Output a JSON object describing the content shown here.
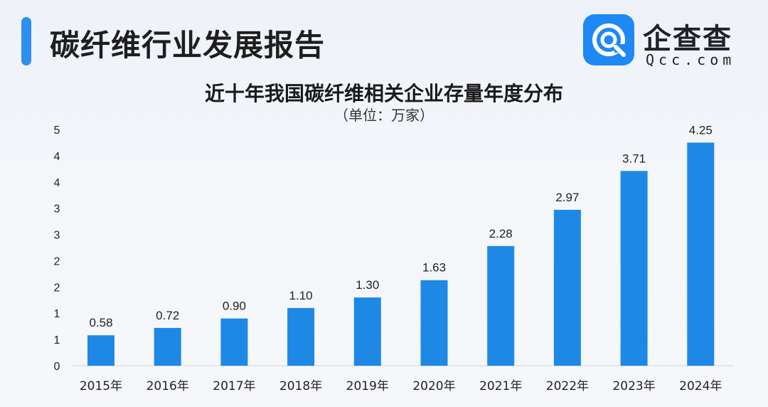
{
  "header": {
    "title": "碳纤维行业发展报告",
    "logo_cn": "企查查",
    "logo_en": "Qcc.com"
  },
  "colors": {
    "accent": "#2f8ff0",
    "bar": "#1e88e5",
    "logo": "#1e88f5"
  },
  "chart_data": {
    "type": "bar",
    "title": "近十年我国碳纤维相关企业存量年度分布",
    "subtitle": "（单位：万家）",
    "categories": [
      "2015年",
      "2016年",
      "2017年",
      "2018年",
      "2019年",
      "2020年",
      "2021年",
      "2022年",
      "2023年",
      "2024年"
    ],
    "values": [
      0.58,
      0.72,
      0.9,
      1.1,
      1.3,
      1.63,
      2.28,
      2.97,
      3.71,
      4.25
    ],
    "value_labels": [
      "0.58",
      "0.72",
      "0.90",
      "1.10",
      "1.30",
      "1.63",
      "2.28",
      "2.97",
      "3.71",
      "4.25"
    ],
    "y_tick_labels": [
      "0",
      "1",
      "1",
      "2",
      "2",
      "3",
      "3",
      "4",
      "4",
      "5"
    ],
    "ylim": [
      0,
      4.5
    ],
    "grid": false,
    "legend": false
  }
}
